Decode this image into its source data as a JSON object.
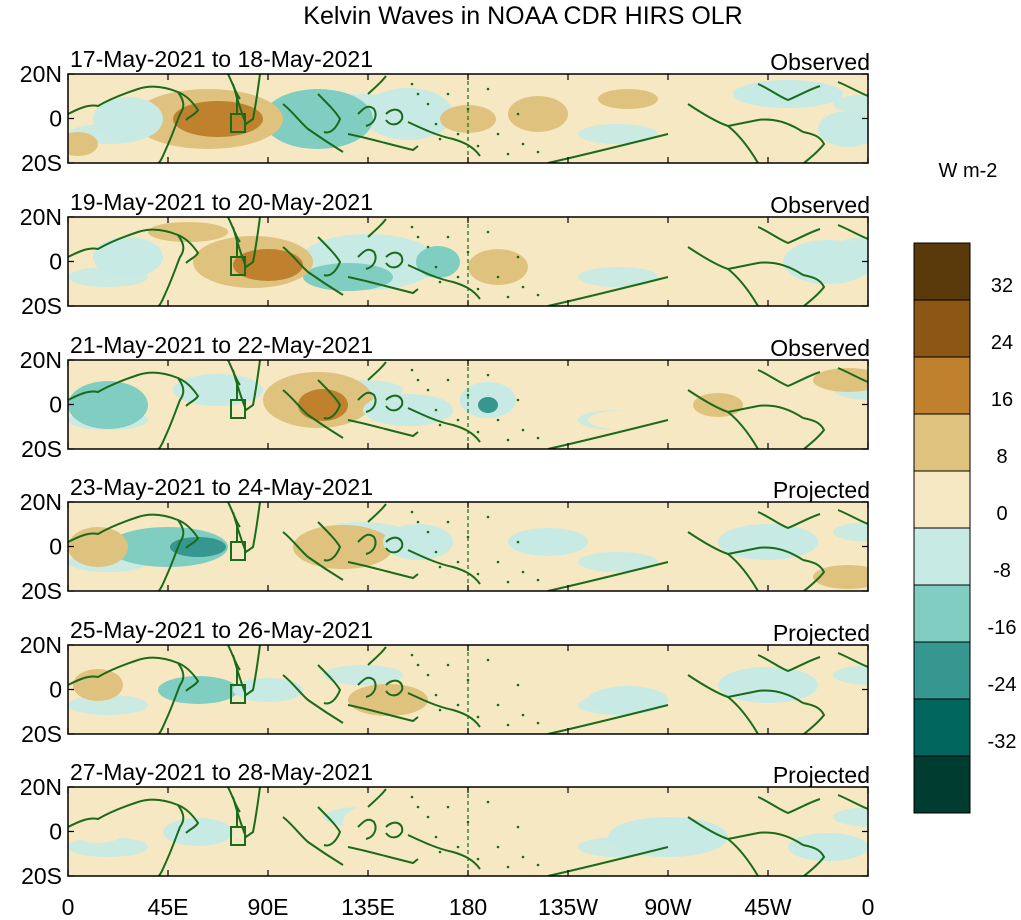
{
  "figure": {
    "title": "Kelvin Waves in NOAA CDR HIRS OLR",
    "colorbar_units": "W m-2"
  },
  "panels": [
    {
      "date_range": "17-May-2021 to 18-May-2021",
      "status": "Observed"
    },
    {
      "date_range": "19-May-2021 to 20-May-2021",
      "status": "Observed"
    },
    {
      "date_range": "21-May-2021 to 22-May-2021",
      "status": "Observed"
    },
    {
      "date_range": "23-May-2021 to 24-May-2021",
      "status": "Projected"
    },
    {
      "date_range": "25-May-2021 to 26-May-2021",
      "status": "Projected"
    },
    {
      "date_range": "27-May-2021 to 28-May-2021",
      "status": "Projected"
    }
  ],
  "axes": {
    "lat_ticks": [
      "20N",
      "0",
      "20S"
    ],
    "lon_ticks": [
      "0",
      "45E",
      "90E",
      "135E",
      "180",
      "135W",
      "90W",
      "45W",
      "0"
    ]
  },
  "colorbar": {
    "tick_labels": [
      "32",
      "24",
      "16",
      "8",
      "0",
      "-8",
      "-16",
      "-24",
      "-32"
    ],
    "colors": [
      "#5a3a0a",
      "#8c5614",
      "#bf812d",
      "#dfc27d",
      "#f6e8c3",
      "#c7eae5",
      "#80cdc1",
      "#35978f",
      "#01665e",
      "#003c30"
    ]
  },
  "map_colors": {
    "coast": "#1a6b1a",
    "dry_strong": "#bf812d",
    "dry_mid": "#dfc27d",
    "dry_light": "#f6e8c3",
    "wet_light": "#c7eae5",
    "wet_mid": "#80cdc1",
    "wet_strong": "#35978f"
  }
}
